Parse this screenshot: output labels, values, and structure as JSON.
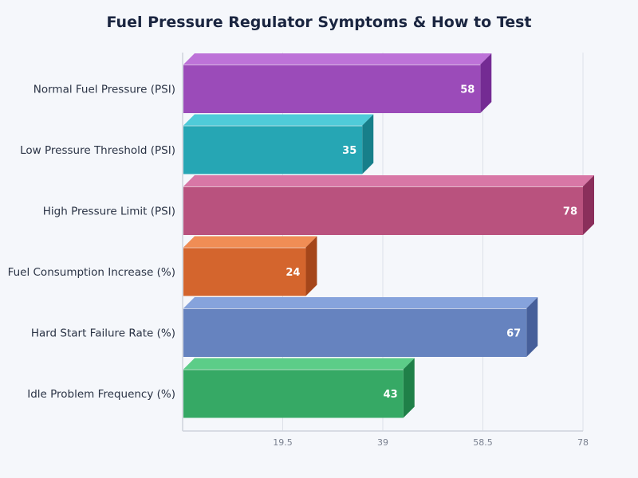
{
  "chart_data": {
    "type": "bar",
    "orientation": "horizontal",
    "style": "3d",
    "title": "Fuel Pressure Regulator Symptoms & How to Test",
    "categories": [
      "Normal Fuel Pressure (PSI)",
      "Low Pressure Threshold (PSI)",
      "High Pressure Limit (PSI)",
      "Fuel Consumption Increase (%)",
      "Hard Start Failure Rate (%)",
      "Idle Problem Frequency (%)"
    ],
    "values": [
      58,
      35,
      78,
      24,
      67,
      43
    ],
    "colors": [
      {
        "front": "#9b4bb9",
        "top": "#bd72d8",
        "side": "#742b93"
      },
      {
        "front": "#26a6b4",
        "top": "#4fcbd9",
        "side": "#177f8a"
      },
      {
        "front": "#b9527e",
        "top": "#d877a6",
        "side": "#8a2f5b"
      },
      {
        "front": "#d4652d",
        "top": "#f08d55",
        "side": "#a5461a"
      },
      {
        "front": "#6683bf",
        "top": "#86a3dc",
        "side": "#465f9a"
      },
      {
        "front": "#36a965",
        "top": "#5ccd88",
        "side": "#1f8048"
      }
    ],
    "xlim": [
      0,
      78
    ],
    "xticks": [
      "19.5",
      "39",
      "58.5",
      "78"
    ],
    "grid": true,
    "xlabel": "",
    "ylabel": ""
  }
}
